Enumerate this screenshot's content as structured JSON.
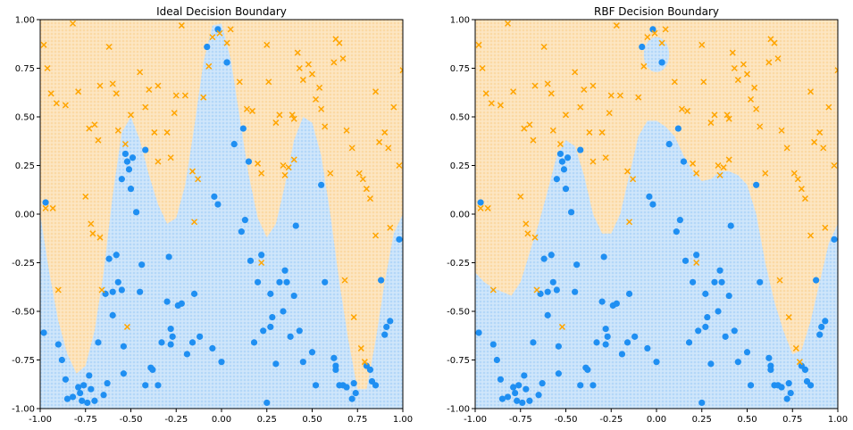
{
  "chart_data": [
    {
      "type": "scatter",
      "title": "Ideal Decision Boundary",
      "xlim": [
        -1.0,
        1.0
      ],
      "ylim": [
        -1.0,
        1.0
      ],
      "xticks": [
        "-1.00",
        "-0.75",
        "-0.50",
        "-0.25",
        "0.00",
        "0.25",
        "0.50",
        "0.75",
        "1.00"
      ],
      "yticks": [
        "1.00",
        "0.75",
        "0.50",
        "0.25",
        "0.00",
        "-0.25",
        "-0.50",
        "-0.75",
        "-1.00"
      ],
      "grid": false,
      "background_regions": {
        "class_0_color": "#cfe6fb",
        "class_1_color": "#fde6c2"
      },
      "boundary": {
        "x": [
          -1.0,
          -0.95,
          -0.9,
          -0.85,
          -0.8,
          -0.75,
          -0.7,
          -0.65,
          -0.6,
          -0.55,
          -0.5,
          -0.45,
          -0.4,
          -0.35,
          -0.3,
          -0.25,
          -0.2,
          -0.15,
          -0.1,
          -0.05,
          0.0,
          0.05,
          0.1,
          0.15,
          0.2,
          0.25,
          0.3,
          0.35,
          0.4,
          0.45,
          0.5,
          0.55,
          0.6,
          0.65,
          0.7,
          0.75,
          0.8,
          0.85,
          0.9,
          0.95,
          1.0
        ],
        "y": [
          0.0,
          -0.3,
          -0.55,
          -0.72,
          -0.82,
          -0.78,
          -0.6,
          -0.3,
          0.1,
          0.42,
          0.5,
          0.38,
          0.2,
          0.05,
          -0.05,
          -0.02,
          0.15,
          0.45,
          0.78,
          0.97,
          0.98,
          0.8,
          0.5,
          0.2,
          -0.02,
          -0.12,
          -0.05,
          0.15,
          0.38,
          0.5,
          0.47,
          0.3,
          0.0,
          -0.35,
          -0.65,
          -0.9,
          -0.9,
          -0.65,
          -0.35,
          -0.1,
          0.0
        ]
      }
    },
    {
      "type": "scatter",
      "title": "RBF Decision Boundary",
      "xlim": [
        -1.0,
        1.0
      ],
      "ylim": [
        -1.0,
        1.0
      ],
      "xticks": [
        "-1.00",
        "-0.75",
        "-0.50",
        "-0.25",
        "0.00",
        "0.25",
        "0.50",
        "0.75",
        "1.00"
      ],
      "yticks": [
        "1.00",
        "0.75",
        "0.50",
        "0.25",
        "0.00",
        "-0.25",
        "-0.50",
        "-0.75",
        "-1.00"
      ],
      "grid": false,
      "background_regions": {
        "class_0_color": "#cfe6fb",
        "class_1_color": "#fde6c2"
      },
      "boundary": {
        "x": [
          -1.0,
          -0.95,
          -0.9,
          -0.85,
          -0.8,
          -0.75,
          -0.7,
          -0.65,
          -0.6,
          -0.55,
          -0.5,
          -0.45,
          -0.4,
          -0.35,
          -0.3,
          -0.25,
          -0.2,
          -0.15,
          -0.1,
          -0.05,
          0.0,
          0.05,
          0.1,
          0.15,
          0.2,
          0.25,
          0.3,
          0.35,
          0.4,
          0.45,
          0.5,
          0.55,
          0.6,
          0.65,
          0.7,
          0.75,
          0.8,
          0.85,
          0.9,
          0.95,
          1.0
        ],
        "y": [
          -0.3,
          -0.35,
          -0.38,
          -0.4,
          -0.42,
          -0.35,
          -0.2,
          -0.05,
          0.12,
          0.3,
          0.38,
          0.35,
          0.2,
          0.0,
          -0.1,
          -0.1,
          0.0,
          0.2,
          0.4,
          0.48,
          0.48,
          0.45,
          0.4,
          0.3,
          0.22,
          0.17,
          0.18,
          0.22,
          0.22,
          0.2,
          0.15,
          0.0,
          -0.25,
          -0.45,
          -0.6,
          -0.72,
          -0.7,
          -0.55,
          -0.35,
          -0.15,
          -0.05
        ]
      },
      "island": {
        "x": 0.0,
        "y": 0.82,
        "rx": 0.07,
        "ry": 0.09
      }
    }
  ],
  "points": {
    "class_0_color": "#1f8ff2",
    "class_1_color": "#ffa500",
    "class_0": [
      [
        -0.98,
        -0.61
      ],
      [
        -0.9,
        -0.67
      ],
      [
        -0.88,
        -0.75
      ],
      [
        -0.86,
        -0.85
      ],
      [
        -0.85,
        -0.95
      ],
      [
        -0.82,
        -0.94
      ],
      [
        -0.79,
        -0.89
      ],
      [
        -0.78,
        -0.92
      ],
      [
        -0.77,
        -0.96
      ],
      [
        -0.76,
        -0.88
      ],
      [
        -0.74,
        -0.97
      ],
      [
        -0.73,
        -0.83
      ],
      [
        -0.72,
        -0.9
      ],
      [
        -0.7,
        -0.96
      ],
      [
        -0.68,
        -0.66
      ],
      [
        -0.65,
        -0.93
      ],
      [
        -0.63,
        -0.87
      ],
      [
        -0.64,
        -0.41
      ],
      [
        -0.62,
        -0.23
      ],
      [
        -0.6,
        -0.52
      ],
      [
        -0.58,
        -0.21
      ],
      [
        -0.57,
        -0.35
      ],
      [
        -0.55,
        -0.39
      ],
      [
        -0.54,
        -0.82
      ],
      [
        -0.54,
        -0.68
      ],
      [
        -0.53,
        0.31
      ],
      [
        -0.52,
        0.27
      ],
      [
        -0.51,
        0.23
      ],
      [
        -0.5,
        0.13
      ],
      [
        -0.49,
        0.29
      ],
      [
        -0.45,
        -0.4
      ],
      [
        -0.44,
        -0.26
      ],
      [
        -0.42,
        0.33
      ],
      [
        -0.42,
        -0.88
      ],
      [
        -0.39,
        -0.79
      ],
      [
        -0.38,
        -0.8
      ],
      [
        -0.35,
        -0.88
      ],
      [
        -0.33,
        -0.66
      ],
      [
        -0.3,
        -0.45
      ],
      [
        -0.29,
        -0.22
      ],
      [
        -0.28,
        -0.59
      ],
      [
        -0.28,
        -0.67
      ],
      [
        -0.27,
        -0.63
      ],
      [
        -0.24,
        -0.47
      ],
      [
        -0.22,
        -0.46
      ],
      [
        -0.19,
        -0.72
      ],
      [
        -0.16,
        -0.66
      ],
      [
        -0.15,
        -0.41
      ],
      [
        -0.12,
        -0.63
      ],
      [
        -0.08,
        0.86
      ],
      [
        -0.05,
        -0.69
      ],
      [
        -0.04,
        0.09
      ],
      [
        -0.02,
        0.05
      ],
      [
        0.0,
        -0.76
      ],
      [
        0.03,
        0.78
      ],
      [
        0.07,
        0.36
      ],
      [
        0.11,
        -0.09
      ],
      [
        0.12,
        0.44
      ],
      [
        0.13,
        -0.03
      ],
      [
        0.15,
        0.27
      ],
      [
        0.16,
        -0.24
      ],
      [
        0.18,
        -0.66
      ],
      [
        0.2,
        -0.35
      ],
      [
        0.22,
        -0.21
      ],
      [
        0.23,
        -0.6
      ],
      [
        0.25,
        -0.97
      ],
      [
        0.27,
        -0.58
      ],
      [
        0.27,
        -0.41
      ],
      [
        0.28,
        -0.53
      ],
      [
        0.3,
        -0.77
      ],
      [
        0.32,
        -0.35
      ],
      [
        0.34,
        -0.5
      ],
      [
        0.35,
        -0.29
      ],
      [
        0.36,
        -0.35
      ],
      [
        0.38,
        -0.63
      ],
      [
        0.4,
        -0.42
      ],
      [
        0.41,
        -0.06
      ],
      [
        0.43,
        -0.6
      ],
      [
        0.45,
        -0.76
      ],
      [
        0.5,
        -0.71
      ],
      [
        0.52,
        -0.88
      ],
      [
        0.55,
        0.15
      ],
      [
        0.57,
        -0.35
      ],
      [
        0.62,
        -0.74
      ],
      [
        0.63,
        -0.78
      ],
      [
        0.63,
        -0.8
      ],
      [
        0.65,
        -0.88
      ],
      [
        0.67,
        -0.88
      ],
      [
        0.69,
        -0.89
      ],
      [
        0.72,
        -0.95
      ],
      [
        0.73,
        -0.87
      ],
      [
        0.74,
        -0.92
      ],
      [
        0.8,
        -0.78
      ],
      [
        0.82,
        -0.8
      ],
      [
        0.83,
        -0.86
      ],
      [
        0.85,
        -0.88
      ],
      [
        0.88,
        -0.34
      ],
      [
        0.9,
        -0.62
      ],
      [
        0.91,
        -0.58
      ],
      [
        0.93,
        -0.55
      ],
      [
        0.98,
        -0.13
      ],
      [
        -0.47,
        0.01
      ],
      [
        -0.55,
        0.18
      ],
      [
        -0.02,
        0.95
      ],
      [
        -0.97,
        0.06
      ],
      [
        0.03,
        0.78
      ],
      [
        -0.6,
        -0.4
      ]
    ],
    "class_1": [
      [
        -0.98,
        0.87
      ],
      [
        -0.96,
        0.75
      ],
      [
        -0.94,
        0.62
      ],
      [
        -0.91,
        0.57
      ],
      [
        -0.86,
        0.56
      ],
      [
        -0.82,
        0.98
      ],
      [
        -0.79,
        0.63
      ],
      [
        -0.73,
        0.44
      ],
      [
        -0.7,
        0.46
      ],
      [
        -0.68,
        0.38
      ],
      [
        -0.67,
        0.66
      ],
      [
        -0.62,
        0.86
      ],
      [
        -0.6,
        0.67
      ],
      [
        -0.58,
        0.62
      ],
      [
        -0.57,
        0.43
      ],
      [
        -0.53,
        0.36
      ],
      [
        -0.5,
        0.51
      ],
      [
        -0.45,
        0.73
      ],
      [
        -0.42,
        0.55
      ],
      [
        -0.4,
        0.64
      ],
      [
        -0.37,
        0.42
      ],
      [
        -0.35,
        0.66
      ],
      [
        -0.3,
        0.42
      ],
      [
        -0.26,
        0.52
      ],
      [
        -0.25,
        0.61
      ],
      [
        -0.22,
        0.97
      ],
      [
        -0.2,
        0.61
      ],
      [
        -0.16,
        0.22
      ],
      [
        -0.13,
        0.18
      ],
      [
        -0.1,
        0.6
      ],
      [
        -0.07,
        0.76
      ],
      [
        -0.05,
        0.91
      ],
      [
        -0.01,
        0.93
      ],
      [
        0.03,
        0.88
      ],
      [
        0.05,
        0.95
      ],
      [
        0.1,
        0.68
      ],
      [
        0.14,
        0.54
      ],
      [
        0.17,
        0.53
      ],
      [
        0.2,
        0.26
      ],
      [
        0.22,
        0.21
      ],
      [
        0.25,
        0.87
      ],
      [
        0.26,
        0.68
      ],
      [
        0.3,
        0.47
      ],
      [
        0.32,
        0.51
      ],
      [
        0.34,
        0.25
      ],
      [
        0.35,
        0.2
      ],
      [
        0.37,
        0.24
      ],
      [
        0.39,
        0.51
      ],
      [
        0.4,
        0.49
      ],
      [
        0.42,
        0.83
      ],
      [
        0.43,
        0.75
      ],
      [
        0.45,
        0.69
      ],
      [
        0.48,
        0.77
      ],
      [
        0.5,
        0.72
      ],
      [
        0.52,
        0.59
      ],
      [
        0.54,
        0.65
      ],
      [
        0.55,
        0.54
      ],
      [
        0.57,
        0.45
      ],
      [
        0.6,
        0.21
      ],
      [
        0.62,
        0.78
      ],
      [
        0.63,
        0.9
      ],
      [
        0.65,
        0.88
      ],
      [
        0.67,
        0.8
      ],
      [
        0.69,
        0.43
      ],
      [
        0.72,
        0.34
      ],
      [
        0.76,
        0.21
      ],
      [
        0.78,
        0.18
      ],
      [
        0.8,
        0.13
      ],
      [
        0.82,
        0.08
      ],
      [
        0.85,
        0.63
      ],
      [
        0.87,
        0.37
      ],
      [
        0.9,
        0.42
      ],
      [
        0.92,
        0.34
      ],
      [
        0.95,
        0.55
      ],
      [
        0.98,
        0.25
      ],
      [
        1.0,
        0.74
      ],
      [
        -0.75,
        0.09
      ],
      [
        -0.72,
        -0.05
      ],
      [
        -0.71,
        -0.1
      ],
      [
        -0.67,
        -0.12
      ],
      [
        -0.66,
        -0.39
      ],
      [
        -0.9,
        -0.39
      ],
      [
        -0.97,
        0.03
      ],
      [
        -0.93,
        0.03
      ],
      [
        -0.15,
        -0.04
      ],
      [
        0.22,
        -0.25
      ],
      [
        0.68,
        -0.34
      ],
      [
        0.73,
        -0.53
      ],
      [
        0.77,
        -0.69
      ],
      [
        0.79,
        -0.76
      ],
      [
        0.85,
        -0.11
      ],
      [
        0.93,
        -0.07
      ],
      [
        -0.35,
        0.27
      ],
      [
        -0.28,
        0.29
      ],
      [
        -0.52,
        -0.58
      ],
      [
        0.4,
        0.28
      ]
    ]
  }
}
